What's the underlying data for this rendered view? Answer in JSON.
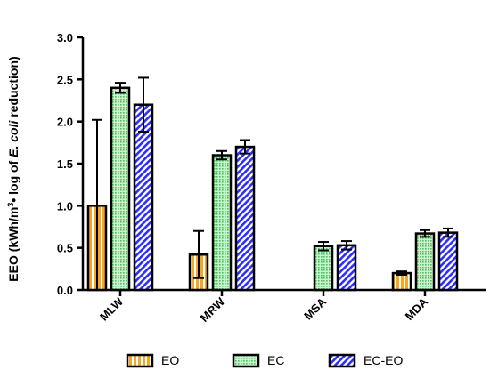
{
  "chart_data": {
    "type": "bar",
    "title": "",
    "xlabel": "",
    "ylabel": {
      "pre": "EEO (kWh/m",
      "sup": "3",
      "mid": "• log of ",
      "italic": "E. coli",
      "post": " reduction)"
    },
    "ylim": [
      0,
      3.0
    ],
    "yticks": [
      "0.0",
      "0.5",
      "1.0",
      "1.5",
      "2.0",
      "2.5",
      "3.0"
    ],
    "categories": [
      "MLW",
      "MRW",
      "MSA",
      "MDA"
    ],
    "series": [
      {
        "name": "EO",
        "color": "#f5a623",
        "pattern": "vertical-stripes",
        "values": [
          1.0,
          0.42,
          0.0,
          0.2
        ],
        "errors": [
          1.02,
          0.28,
          0.0,
          0.02
        ]
      },
      {
        "name": "EC",
        "color": "#7ddc8c",
        "pattern": "dots",
        "values": [
          2.4,
          1.6,
          0.52,
          0.67
        ],
        "errors": [
          0.06,
          0.05,
          0.05,
          0.04
        ]
      },
      {
        "name": "EC-EO",
        "color": "#3333ff",
        "pattern": "diagonal-stripes",
        "values": [
          2.2,
          1.7,
          0.53,
          0.68
        ],
        "errors": [
          0.32,
          0.08,
          0.05,
          0.05
        ]
      }
    ],
    "legend": {
      "position": "bottom"
    },
    "grid": false
  }
}
